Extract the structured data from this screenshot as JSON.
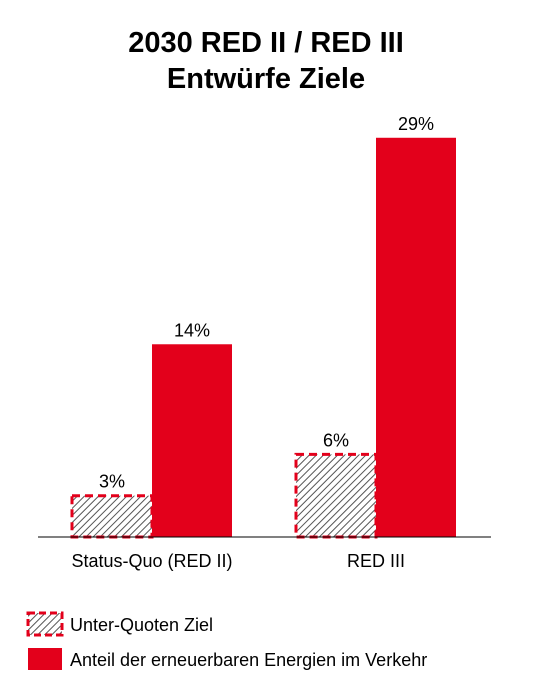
{
  "chart_data": {
    "type": "bar",
    "title": "2030 RED II / RED III",
    "subtitle": "Entwürfe Ziele",
    "categories": [
      "Status-Quo (RED II)",
      "RED III"
    ],
    "series": [
      {
        "name": "Unter-Quoten Ziel",
        "values": [
          3,
          6
        ],
        "labels": [
          "3%",
          "6%"
        ],
        "color": "#e3001b",
        "fill": "hatched"
      },
      {
        "name": "Anteil der erneuerbaren Energien im Verkehr",
        "values": [
          14,
          29
        ],
        "labels": [
          "14%",
          "29%"
        ],
        "color": "#e3001b",
        "fill": "solid"
      }
    ],
    "ylim": [
      0,
      30
    ],
    "grid": false,
    "y_axis_shown": false,
    "legend_position": "bottom-left"
  }
}
